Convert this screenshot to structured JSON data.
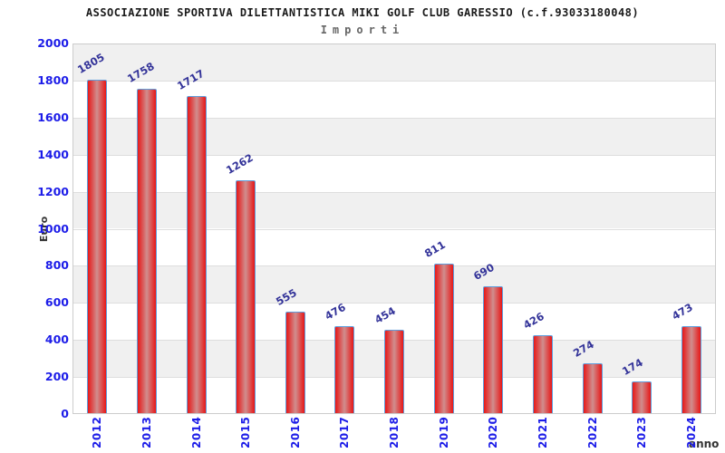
{
  "header": {
    "title": "ASSOCIAZIONE SPORTIVA DILETTANTISTICA MIKI GOLF CLUB GARESSIO (c.f.93033180048)",
    "subtitle": "Importi"
  },
  "chart_data": {
    "type": "bar",
    "title": "ASSOCIAZIONE SPORTIVA DILETTANTISTICA MIKI GOLF CLUB GARESSIO (c.f.93033180048)",
    "subtitle": "Importi",
    "xlabel": "anno",
    "ylabel": "Euro",
    "categories": [
      "2012",
      "2013",
      "2014",
      "2015",
      "2016",
      "2017",
      "2018",
      "2019",
      "2020",
      "2021",
      "2022",
      "2023",
      "2024"
    ],
    "values": [
      1805,
      1758,
      1717,
      1262,
      555,
      476,
      454,
      811,
      690,
      426,
      274,
      174,
      473
    ],
    "ylim": [
      0,
      2000
    ],
    "ytick_step": 200,
    "legend": "none",
    "grid": "horizontal-bands-alternating",
    "colors": {
      "bar_edge": "#e61c1c",
      "bar_center": "#d08e8e",
      "bar_border": "#5f9ddb",
      "tick_label": "#1c1ce8",
      "value_label": "#333399",
      "band_gray": "#f0f0f0",
      "band_white": "#ffffff",
      "plot_border": "#cccccc",
      "title": "#1a1a1a",
      "subtitle": "#666666",
      "axis_title": "#333333"
    }
  }
}
